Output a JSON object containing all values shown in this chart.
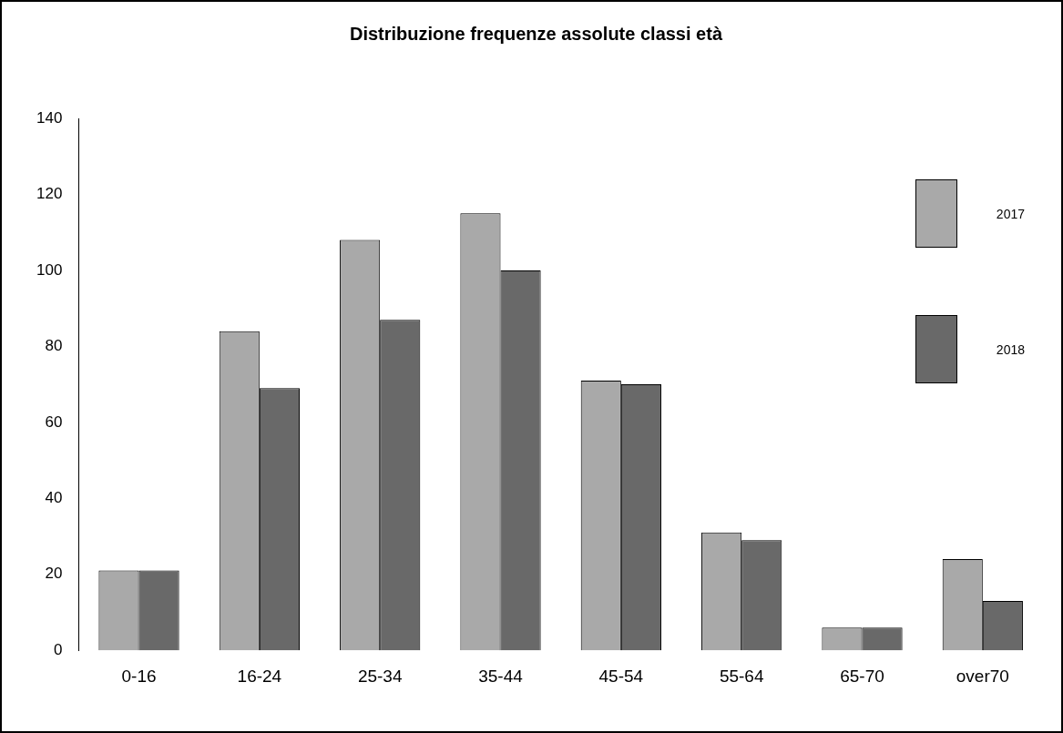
{
  "chart_data": {
    "type": "bar",
    "title": "Distribuzione frequenze assolute classi età",
    "categories": [
      "0-16",
      "16-24",
      "25-34",
      "35-44",
      "45-54",
      "55-64",
      "65-70",
      "over70"
    ],
    "series": [
      {
        "name": "2017",
        "color": "#a9a9a9",
        "values": [
          21,
          84,
          108,
          115,
          71,
          31,
          6,
          24
        ]
      },
      {
        "name": "2018",
        "color": "#696969",
        "values": [
          21,
          69,
          87,
          100,
          70,
          29,
          6,
          13
        ]
      }
    ],
    "ylim": [
      0,
      140
    ],
    "yticks": [
      0,
      20,
      40,
      60,
      80,
      100,
      120,
      140
    ],
    "grid": false,
    "legend": "top right"
  }
}
